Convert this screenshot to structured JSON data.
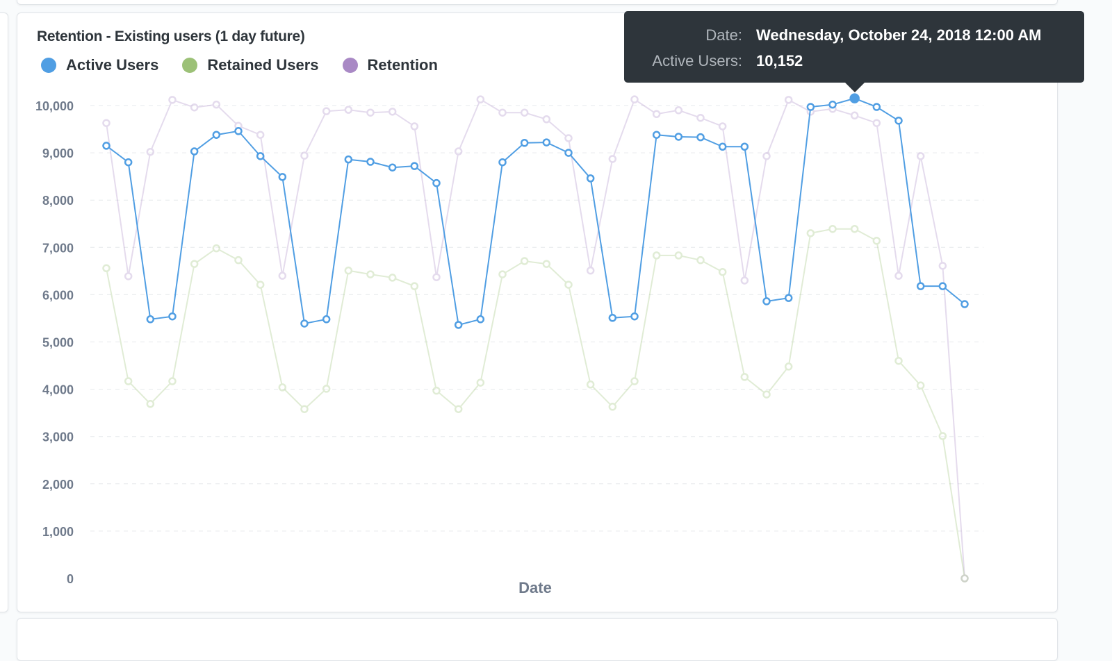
{
  "chart_data": {
    "type": "line",
    "title": "Retention - Existing users (1 day future)",
    "xlabel": "Date",
    "ylabel": "",
    "ylim": [
      0,
      10000
    ],
    "yticks": [
      "0",
      "1,000",
      "2,000",
      "3,000",
      "4,000",
      "5,000",
      "6,000",
      "7,000",
      "8,000",
      "9,000",
      "10,000"
    ],
    "grid": true,
    "legend_position": "top-left",
    "series": [
      {
        "name": "Active Users",
        "color": "#509ee3",
        "values": [
          9150,
          8800,
          5480,
          5540,
          9030,
          9380,
          9460,
          8930,
          8490,
          5390,
          5480,
          8860,
          8810,
          8690,
          8720,
          8360,
          5360,
          5480,
          8800,
          9210,
          9220,
          9000,
          8460,
          5510,
          5540,
          9380,
          9340,
          9330,
          9130,
          9130,
          5860,
          5930,
          9970,
          10020,
          10152,
          9970,
          9680,
          6180,
          6180,
          5800
        ]
      },
      {
        "name": "Retained Users",
        "color": "#9cc177",
        "values": [
          6560,
          4170,
          3690,
          4170,
          6650,
          6980,
          6730,
          6210,
          4040,
          3580,
          4010,
          6510,
          6430,
          6360,
          6180,
          3970,
          3580,
          4140,
          6430,
          6710,
          6650,
          6210,
          4100,
          3630,
          4170,
          6830,
          6830,
          6730,
          6480,
          4260,
          3890,
          4480,
          7300,
          7390,
          7390,
          7140,
          4600,
          4080,
          3010,
          0
        ]
      },
      {
        "name": "Retention",
        "color": "#a989c5",
        "values": [
          9630,
          6390,
          9020,
          10120,
          9960,
          10020,
          9570,
          9380,
          6400,
          8940,
          9880,
          9910,
          9850,
          9870,
          9560,
          6370,
          9030,
          10130,
          9850,
          9850,
          9710,
          9310,
          6510,
          8870,
          10130,
          9820,
          9900,
          9740,
          9560,
          6300,
          8930,
          10120,
          9870,
          9930,
          9790,
          9630,
          6400,
          8930,
          6610,
          0
        ]
      }
    ],
    "highlighted_index": 34
  },
  "legend": {
    "items": [
      {
        "label": "Active Users",
        "color": "#509ee3"
      },
      {
        "label": "Retained Users",
        "color": "#9cc177"
      },
      {
        "label": "Retention",
        "color": "#a989c5"
      }
    ]
  },
  "tooltip": {
    "date_label": "Date:",
    "date_value": "Wednesday, October 24, 2018 12:00 AM",
    "metric_label": "Active Users:",
    "metric_value": "10,152"
  }
}
